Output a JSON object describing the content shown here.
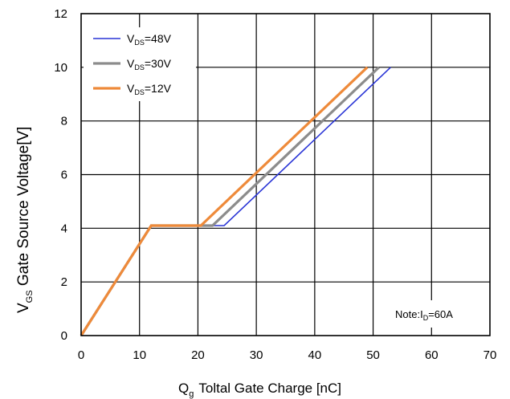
{
  "chart_data": {
    "type": "line",
    "xlabel": {
      "main": "Q",
      "sub": "g",
      "rest": "Toltal Gate Charge [nC]"
    },
    "ylabel": {
      "main": "V",
      "sub": "GS",
      "rest": " Gate Source Voltage[V]"
    },
    "xlim": [
      0,
      70
    ],
    "ylim": [
      0,
      12
    ],
    "xticks": [
      "0",
      "10",
      "20",
      "30",
      "40",
      "50",
      "60",
      "70"
    ],
    "yticks": [
      "0",
      "2",
      "4",
      "6",
      "8",
      "10",
      "12"
    ],
    "grid": true,
    "legend_position": "top-left",
    "series": [
      {
        "name": "V_DS=48V",
        "label_main": "V",
        "label_sub": "DS",
        "label_rest": "=48V",
        "color": "#2a35d6",
        "x": [
          0,
          12,
          24.5,
          53
        ],
        "y": [
          0,
          4.1,
          4.1,
          10
        ]
      },
      {
        "name": "V_DS=30V",
        "label_main": "V",
        "label_sub": "DS",
        "label_rest": "=30V",
        "color": "#8c8c8c",
        "x": [
          0,
          12,
          22.5,
          51
        ],
        "y": [
          0,
          4.1,
          4.1,
          10
        ]
      },
      {
        "name": "V_DS=12V",
        "label_main": "V",
        "label_sub": "DS",
        "label_rest": "=12V",
        "color": "#ee8a3a",
        "x": [
          0,
          12,
          20.5,
          49
        ],
        "y": [
          0,
          4.1,
          4.1,
          10
        ]
      }
    ],
    "annotation": {
      "main": "Note:I",
      "sub": "D",
      "rest": "=60A"
    }
  }
}
